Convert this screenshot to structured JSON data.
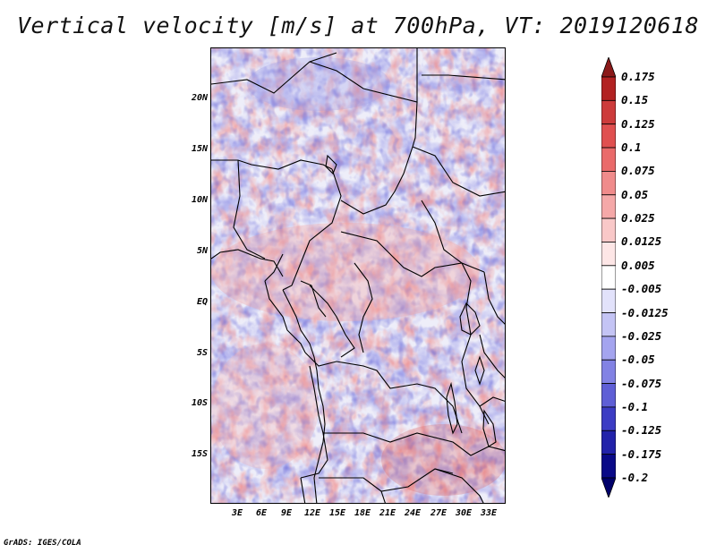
{
  "title": "Vertical velocity [m/s] at 700hPa, VT: 2019120618",
  "footer": "GrADS: IGES/COLA",
  "map": {
    "variable": "Vertical velocity",
    "level": "700hPa",
    "valid_time": "2019120618",
    "lat_labels": [
      "20N",
      "15N",
      "10N",
      "5N",
      "EQ",
      "5S",
      "10S",
      "15S"
    ],
    "lon_labels": [
      "3E",
      "6E",
      "9E",
      "12E",
      "15E",
      "18E",
      "21E",
      "24E",
      "27E",
      "30E",
      "33E"
    ]
  },
  "colorbar": {
    "levels": [
      "0.175",
      "0.15",
      "0.125",
      "0.1",
      "0.075",
      "0.05",
      "0.025",
      "0.0125",
      "0.005",
      "-0.005",
      "-0.0125",
      "-0.025",
      "-0.05",
      "-0.075",
      "-0.1",
      "-0.125",
      "-0.175",
      "-0.2"
    ],
    "colors": [
      "#8b1a1a",
      "#b22222",
      "#cd3b3b",
      "#e05050",
      "#ea6a6a",
      "#f08b8b",
      "#f5a8a8",
      "#f9c8c8",
      "#fde6e6",
      "#ffffff",
      "#e2e2fb",
      "#c4c4f5",
      "#a4a4ef",
      "#8282e4",
      "#5f5fd6",
      "#3c3cc4",
      "#2222aa",
      "#0a0a88",
      "#00006a"
    ],
    "top_color": "#8b1a1a",
    "bottom_color": "#1a0a8a"
  }
}
